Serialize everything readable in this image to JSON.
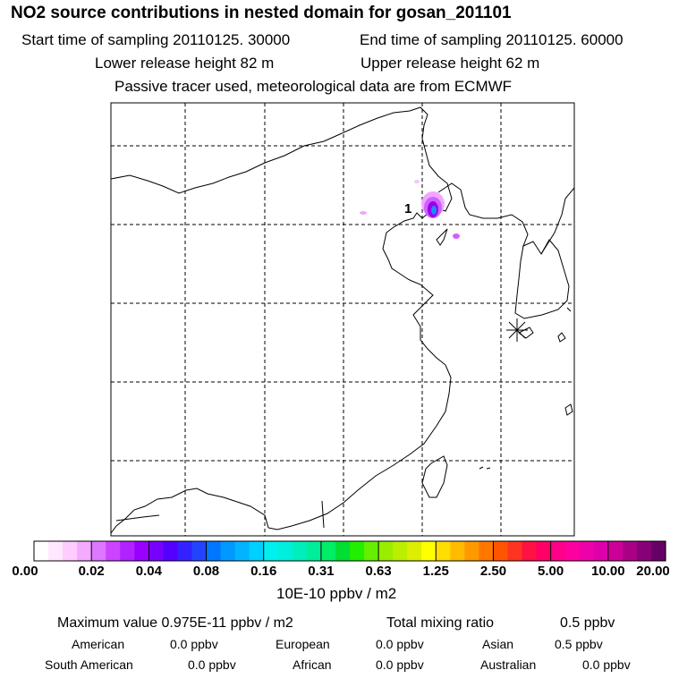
{
  "header": {
    "title": "NO2 source contributions in nested domain for gosan_201101",
    "start_label": "Start time of sampling 20110125. 30000",
    "end_label": "End time of sampling 20110125. 60000",
    "lower_label": "Lower release height   82 m",
    "upper_label": "Upper release height   62 m",
    "tracer_note": "Passive tracer used, meteorological data are from ECMWF"
  },
  "map": {
    "marker_label": "1",
    "colors": {
      "coast": "#000000",
      "grid": "#000000",
      "plume_core": "#1a8cff",
      "plume_mid": "#8800ee",
      "plume_edge": "#e060ff"
    }
  },
  "colorbar": {
    "ticks": [
      "0.00",
      "0.02",
      "0.04",
      "0.08",
      "0.16",
      "0.31",
      "0.63",
      "1.25",
      "2.50",
      "5.00",
      "10.00",
      "20.00"
    ],
    "unit": "10E-10 ppbv / m2",
    "colors": [
      "#ffffff",
      "#ffe8ff",
      "#ffccff",
      "#f5aaff",
      "#dd77ff",
      "#cc44ff",
      "#b022ff",
      "#9900ff",
      "#7700ff",
      "#5500ff",
      "#3322ff",
      "#2244ff",
      "#0077ff",
      "#0099ff",
      "#00b4ff",
      "#00d0ff",
      "#00f0ee",
      "#00eedd",
      "#00eebb",
      "#00ee99",
      "#00ee66",
      "#00dd33",
      "#22ee00",
      "#66ee00",
      "#99ee00",
      "#bbee00",
      "#ddee00",
      "#ffff00",
      "#ffdd00",
      "#ffbb00",
      "#ff9900",
      "#ff7700",
      "#ff5500",
      "#ff3322",
      "#ff1144",
      "#ff0066",
      "#ff0088",
      "#ff00a0",
      "#ee00aa",
      "#dd00aa",
      "#cc0099",
      "#aa0088",
      "#880077",
      "#660066"
    ]
  },
  "footer": {
    "max_label": "Maximum value  0.975E-11 ppbv / m2",
    "total_label": "Total mixing ratio",
    "total_value": "0.5 ppbv",
    "regions": [
      {
        "name": "American",
        "value": "0.0 ppbv"
      },
      {
        "name": "European",
        "value": "0.0 ppbv"
      },
      {
        "name": "Asian",
        "value": "0.5 ppbv"
      },
      {
        "name": "South American",
        "value": "0.0 ppbv"
      },
      {
        "name": "African",
        "value": "0.0 ppbv"
      },
      {
        "name": "Australian",
        "value": "0.0 ppbv"
      }
    ]
  }
}
